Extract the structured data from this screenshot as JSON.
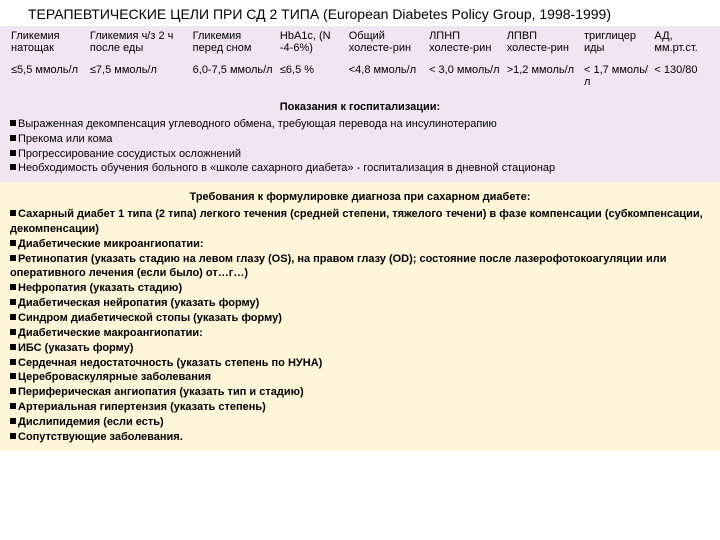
{
  "title": "ТЕРАПЕВТИЧЕСКИЕ ЦЕЛИ  ПРИ СД 2 ТИПА (European Diabetes Policy Group, 1998-1999)",
  "table": {
    "headers": [
      "Гликемия натощак",
      "Гликемия ч/з 2 ч после еды",
      "Гликемия перед сном",
      "HbA1c, (N -4-6%)",
      "Общий холесте-рин",
      "ЛПНП холесте-рин",
      "ЛПВП холесте-рин",
      "триглицер иды",
      "АД, мм.рт.ст."
    ],
    "values": [
      "≤5,5 ммоль/л",
      "≤7,5 ммоль/л",
      "6,0-7,5 ммоль/л",
      "≤6,5 %",
      "<4,8 ммоль/л",
      "< 3,0 ммоль/л",
      ">1,2 ммоль/л",
      "< 1,7 ммоль/л",
      "< 130/80"
    ]
  },
  "hosp": {
    "title": "Показания к госпитализации:",
    "items": [
      "Выраженная декомпенсация углеводного обмена, требующая перевода на инсулинотерапию",
      "Прекома или кома",
      "Прогрессирование сосудистых осложнений",
      "Необходимость обучения больного в «школе сахарного диабета» - госпитализация в дневной стационар"
    ]
  },
  "diag": {
    "title": "Требования к формулировке диагноза при сахарном диабете:",
    "items": [
      "Сахарный диабет 1 типа (2 типа) легкого течения (средней степени, тяжелого течени) в фазе компенсации (субкомпенсации, декомпенсации)",
      "Диабетические микроангиопатии:",
      "Ретинопатия (указать стадию на левом глазу (OS), на правом глазу (OD); состояние после лазерофотокоагуляции или оперативного лечения (если было) от…г…)",
      "Нефропатия (указать стадию)",
      "Диабетическая нейропатия (указать форму)",
      "Синдром диабетической стопы (указать форму)",
      "Диабетические макроангиопатии:",
      "ИБС (указать форму)",
      "Сердечная недостаточность (указать степень по НУНА)",
      "Цереброваскулярные заболевания",
      "Периферическая ангиопатия (указать тип и стадию)",
      "Артериальная гипертензия (указать степень)",
      "Дислипидемия (если есть)",
      "Сопутствующие заболевания."
    ]
  },
  "colors": {
    "pink": "#f2e5f2",
    "yellow": "#fff6d9"
  }
}
